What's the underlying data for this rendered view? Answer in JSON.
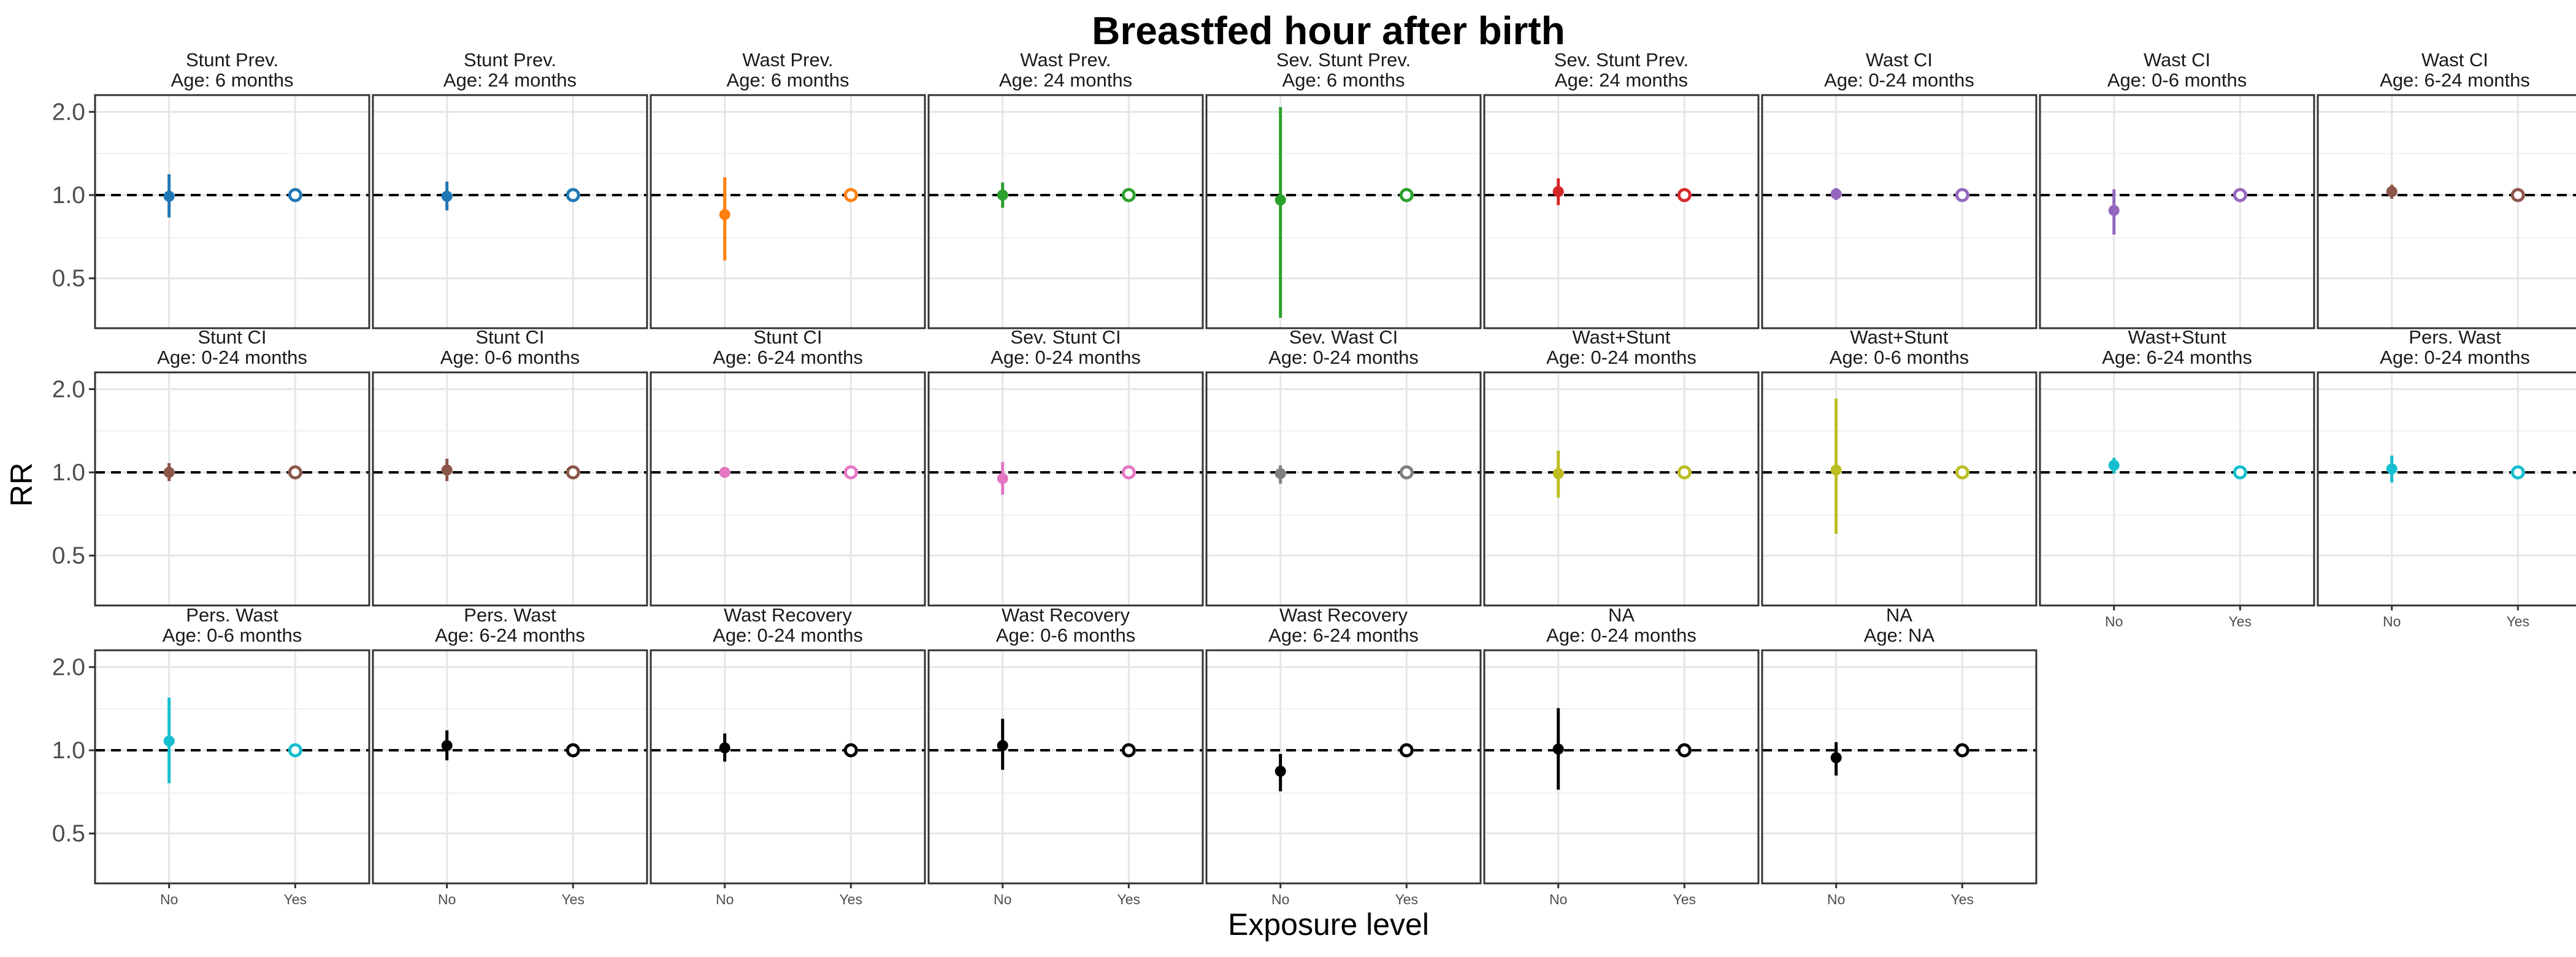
{
  "chart_data": {
    "type": "scatter",
    "title": "Breastfed hour after birth",
    "xlabel": "Exposure level",
    "ylabel": "RR",
    "y_scale": "log",
    "ylim": [
      0.33,
      2.3
    ],
    "y_ticks": [
      {
        "value": 0.5,
        "label": "0.5"
      },
      {
        "value": 1.0,
        "label": "1.0"
      },
      {
        "value": 2.0,
        "label": "2.0"
      }
    ],
    "categories": [
      "No",
      "Yes"
    ],
    "reference_line": 1.0,
    "grid": true,
    "layout": {
      "rows": 3,
      "cols": 9
    },
    "panels": [
      {
        "strip": [
          "Stunt Prev.",
          "Age: 6 months"
        ],
        "color": "#1f77b4",
        "no": {
          "est": 0.99,
          "lo": 0.83,
          "hi": 1.19
        },
        "yes": {
          "est": 1.0
        }
      },
      {
        "strip": [
          "Stunt Prev.",
          "Age: 24 months"
        ],
        "color": "#1f77b4",
        "no": {
          "est": 0.99,
          "lo": 0.88,
          "hi": 1.12
        },
        "yes": {
          "est": 1.0
        }
      },
      {
        "strip": [
          "Wast Prev.",
          "Age: 6 months"
        ],
        "color": "#ff7f0e",
        "no": {
          "est": 0.85,
          "lo": 0.58,
          "hi": 1.16
        },
        "yes": {
          "est": 1.0
        }
      },
      {
        "strip": [
          "Wast Prev.",
          "Age: 24 months"
        ],
        "color": "#2ca02c",
        "no": {
          "est": 1.0,
          "lo": 0.9,
          "hi": 1.11
        },
        "yes": {
          "est": 1.0
        }
      },
      {
        "strip": [
          "Sev. Stunt Prev.",
          "Age: 6 months"
        ],
        "color": "#2ca02c",
        "no": {
          "est": 0.96,
          "lo": 0.36,
          "hi": 2.08
        },
        "yes": {
          "est": 1.0
        }
      },
      {
        "strip": [
          "Sev. Stunt Prev.",
          "Age: 24 months"
        ],
        "color": "#d62728",
        "no": {
          "est": 1.03,
          "lo": 0.92,
          "hi": 1.15
        },
        "yes": {
          "est": 1.0
        }
      },
      {
        "strip": [
          "Wast CI",
          "Age: 0-24 months"
        ],
        "color": "#9467bd",
        "no": {
          "est": 1.01,
          "lo": 0.96,
          "hi": 1.06
        },
        "yes": {
          "est": 1.0
        }
      },
      {
        "strip": [
          "Wast CI",
          "Age: 0-6 months"
        ],
        "color": "#9467bd",
        "no": {
          "est": 0.88,
          "lo": 0.72,
          "hi": 1.05
        },
        "yes": {
          "est": 1.0
        }
      },
      {
        "strip": [
          "Wast CI",
          "Age: 6-24 months"
        ],
        "color": "#8c564b",
        "no": {
          "est": 1.03,
          "lo": 0.97,
          "hi": 1.09
        },
        "yes": {
          "est": 1.0
        }
      },
      {
        "strip": [
          "Stunt CI",
          "Age: 0-24 months"
        ],
        "color": "#8c564b",
        "no": {
          "est": 1.0,
          "lo": 0.93,
          "hi": 1.08
        },
        "yes": {
          "est": 1.0
        }
      },
      {
        "strip": [
          "Stunt CI",
          "Age: 0-6 months"
        ],
        "color": "#8c564b",
        "no": {
          "est": 1.02,
          "lo": 0.93,
          "hi": 1.12
        },
        "yes": {
          "est": 1.0
        }
      },
      {
        "strip": [
          "Stunt CI",
          "Age: 6-24 months"
        ],
        "color": "#e377c2",
        "no": {
          "est": 1.0,
          "lo": 0.98,
          "hi": 1.02
        },
        "yes": {
          "est": 1.0
        }
      },
      {
        "strip": [
          "Sev. Stunt CI",
          "Age: 0-24 months"
        ],
        "color": "#e377c2",
        "no": {
          "est": 0.95,
          "lo": 0.83,
          "hi": 1.09
        },
        "yes": {
          "est": 1.0
        }
      },
      {
        "strip": [
          "Sev. Wast CI",
          "Age: 0-24 months"
        ],
        "color": "#7f7f7f",
        "no": {
          "est": 0.99,
          "lo": 0.91,
          "hi": 1.06
        },
        "yes": {
          "est": 1.0
        }
      },
      {
        "strip": [
          "Wast+Stunt",
          "Age: 0-24 months"
        ],
        "color": "#bcbd22",
        "no": {
          "est": 0.99,
          "lo": 0.81,
          "hi": 1.2
        },
        "yes": {
          "est": 1.0
        }
      },
      {
        "strip": [
          "Wast+Stunt",
          "Age: 0-6 months"
        ],
        "color": "#bcbd22",
        "no": {
          "est": 1.02,
          "lo": 0.6,
          "hi": 1.85
        },
        "yes": {
          "est": 1.0
        }
      },
      {
        "strip": [
          "Wast+Stunt",
          "Age: 6-24 months"
        ],
        "color": "#17becf",
        "no": {
          "est": 1.06,
          "lo": 0.99,
          "hi": 1.13
        },
        "yes": {
          "est": 1.0
        }
      },
      {
        "strip": [
          "Pers. Wast",
          "Age: 0-24 months"
        ],
        "color": "#17becf",
        "no": {
          "est": 1.03,
          "lo": 0.92,
          "hi": 1.15
        },
        "yes": {
          "est": 1.0
        }
      },
      {
        "strip": [
          "Pers. Wast",
          "Age: 0-6 months"
        ],
        "color": "#17becf",
        "no": {
          "est": 1.08,
          "lo": 0.76,
          "hi": 1.55
        },
        "yes": {
          "est": 1.0
        }
      },
      {
        "strip": [
          "Pers. Wast",
          "Age: 6-24 months"
        ],
        "color": "#000000",
        "no": {
          "est": 1.04,
          "lo": 0.92,
          "hi": 1.18
        },
        "yes": {
          "est": 1.0
        }
      },
      {
        "strip": [
          "Wast Recovery",
          "Age: 0-24 months"
        ],
        "color": "#000000",
        "no": {
          "est": 1.02,
          "lo": 0.91,
          "hi": 1.15
        },
        "yes": {
          "est": 1.0
        }
      },
      {
        "strip": [
          "Wast Recovery",
          "Age: 0-6 months"
        ],
        "color": "#000000",
        "no": {
          "est": 1.04,
          "lo": 0.85,
          "hi": 1.3
        },
        "yes": {
          "est": 1.0
        }
      },
      {
        "strip": [
          "Wast Recovery",
          "Age: 6-24 months"
        ],
        "color": "#000000",
        "no": {
          "est": 0.84,
          "lo": 0.71,
          "hi": 0.97
        },
        "yes": {
          "est": 1.0
        }
      },
      {
        "strip": [
          "NA",
          "Age: 0-24 months"
        ],
        "color": "#000000",
        "no": {
          "est": 1.01,
          "lo": 0.72,
          "hi": 1.42
        },
        "yes": {
          "est": 1.0
        }
      },
      {
        "strip": [
          "NA",
          "Age: NA"
        ],
        "color": "#000000",
        "no": {
          "est": 0.94,
          "lo": 0.81,
          "hi": 1.07
        },
        "yes": {
          "est": 1.0
        }
      }
    ]
  }
}
